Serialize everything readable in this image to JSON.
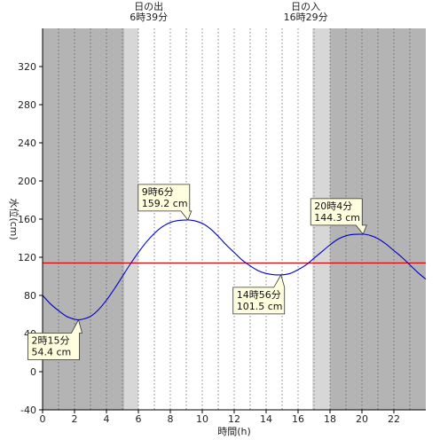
{
  "chart_data": {
    "type": "line",
    "title": "",
    "xlabel": "時間(h)",
    "ylabel": "水位(cm)",
    "xlim": [
      0,
      24
    ],
    "ylim": [
      -40,
      360
    ],
    "x_ticks": [
      0,
      2,
      4,
      6,
      8,
      10,
      12,
      14,
      16,
      18,
      20,
      22
    ],
    "y_ticks": [
      -40,
      0,
      40,
      80,
      120,
      160,
      200,
      240,
      280,
      320
    ],
    "grid": "vertical-dotted",
    "series": [
      {
        "name": "",
        "color": "#0000cc",
        "x": [
          0,
          0.5,
          1,
          1.5,
          2,
          2.25,
          2.5,
          3,
          3.5,
          4,
          4.5,
          5,
          5.5,
          6,
          6.5,
          7,
          7.5,
          8,
          8.5,
          9,
          9.1,
          9.5,
          10,
          10.5,
          11,
          11.5,
          12,
          12.5,
          13,
          13.5,
          14,
          14.5,
          14.93,
          15.5,
          16,
          16.5,
          17,
          17.5,
          18,
          18.5,
          19,
          19.5,
          20,
          20.07,
          20.5,
          21,
          21.5,
          22,
          22.5,
          23,
          23.5,
          24
        ],
        "y": [
          80,
          71,
          64,
          58,
          55,
          54.4,
          55,
          58,
          65,
          75,
          87,
          100,
          113,
          125,
          136,
          145,
          152,
          156.5,
          158.5,
          159.1,
          159.2,
          158.3,
          155.5,
          150,
          142,
          133,
          125,
          117,
          111,
          106,
          103,
          101.7,
          101.5,
          103,
          107,
          112,
          119,
          126,
          133,
          139,
          142.5,
          144,
          144.3,
          144.3,
          143,
          139.5,
          134,
          127,
          120,
          112,
          104,
          97
        ]
      }
    ],
    "reference_line": {
      "value": 114,
      "color": "#dd0000"
    },
    "night_color": "#b4b4b4",
    "twilight_color": "#d7d7d7",
    "day_color": "#ffffff",
    "sunrise": {
      "label": "日の出",
      "time_label": "6時39分",
      "hour": 6.65
    },
    "sunset": {
      "label": "日の入",
      "time_label": "16時29分",
      "hour": 16.48
    },
    "twilight_hours": [
      [
        5.1,
        6.0
      ],
      [
        16.9,
        18.0
      ]
    ],
    "annotations": [
      {
        "time": "2時15分",
        "value": "54.4 cm",
        "x": 2.25,
        "y": 54.4
      },
      {
        "time": "9時6分",
        "value": "159.2 cm",
        "x": 9.1,
        "y": 159.2
      },
      {
        "time": "14時56分",
        "value": "101.5 cm",
        "x": 14.93,
        "y": 101.5
      },
      {
        "time": "20時4分",
        "value": "144.3 cm",
        "x": 20.07,
        "y": 144.3
      }
    ],
    "annotation_fill": "#ffffe0"
  }
}
